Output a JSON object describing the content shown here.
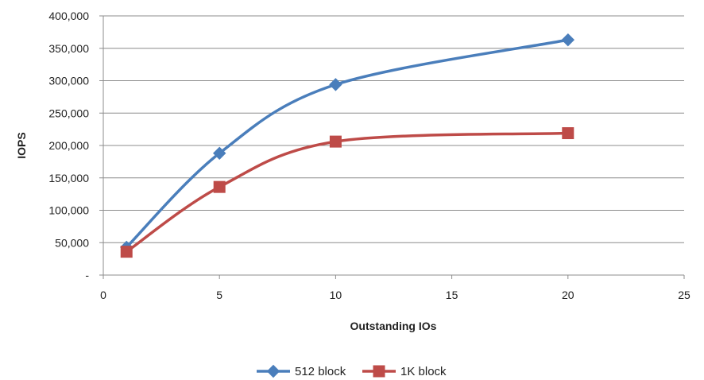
{
  "chart_data": {
    "type": "scatter",
    "title": "",
    "xlabel": "Outstanding IOs",
    "ylabel": "IOPS",
    "xlim": [
      0,
      25
    ],
    "ylim": [
      0,
      400000
    ],
    "x_ticks": [
      0,
      5,
      10,
      15,
      20,
      25
    ],
    "x_tick_labels": [
      "0",
      "5",
      "10",
      "15",
      "20",
      "25"
    ],
    "y_ticks": [
      0,
      50000,
      100000,
      150000,
      200000,
      250000,
      300000,
      350000,
      400000
    ],
    "y_tick_labels": [
      "-",
      "50,000",
      "100,000",
      "150,000",
      "200,000",
      "250,000",
      "300,000",
      "350,000",
      "400,000"
    ],
    "grid": "horizontal",
    "smooth_lines": true,
    "legend_position": "bottom",
    "series": [
      {
        "name": "512 block",
        "color": "#4A7EBB",
        "marker": "diamond",
        "x": [
          1,
          5,
          10,
          20
        ],
        "y": [
          43000,
          188000,
          294000,
          363000
        ]
      },
      {
        "name": "1K block",
        "color": "#BE4B48",
        "marker": "square",
        "x": [
          1,
          5,
          10,
          20
        ],
        "y": [
          36000,
          136000,
          206000,
          219000
        ]
      }
    ]
  }
}
